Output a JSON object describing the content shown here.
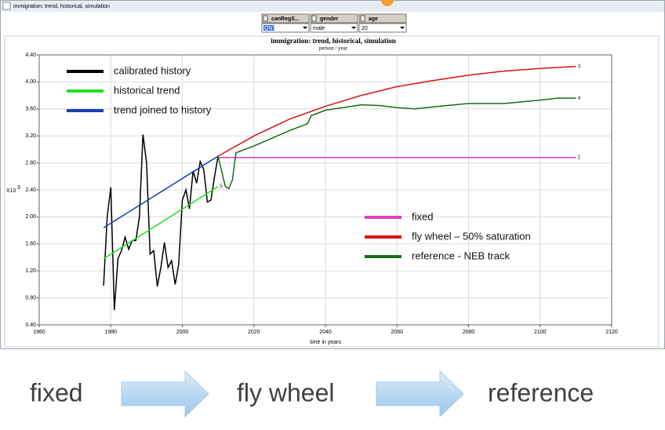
{
  "window": {
    "title": "immigration: trend, historical, simulation",
    "filters": [
      {
        "label": "canRegS...",
        "value": "ONT"
      },
      {
        "label": "gender",
        "value": "male"
      },
      {
        "label": "age",
        "value": "20"
      }
    ]
  },
  "chart_data": {
    "type": "line",
    "title": "immigration: trend, historical, simulation",
    "subtitle": "person / year",
    "xlabel": "time in years",
    "ylabel": "X10",
    "ylabel_exponent": "3",
    "xlim": [
      1960,
      2120
    ],
    "xticks": [
      1960,
      1980,
      2000,
      2020,
      2040,
      2060,
      2080,
      2100,
      2120
    ],
    "ylim": [
      0.4,
      4.4
    ],
    "yticks": [
      {
        "value": 0.4,
        "label": "0.40"
      },
      {
        "value": 0.8,
        "label": "0.80"
      },
      {
        "value": 1.2,
        "label": "1.20"
      },
      {
        "value": 1.6,
        "label": "1.60"
      },
      {
        "value": 2.0,
        "label": "2.00"
      },
      {
        "value": 2.4,
        "label": "2.40"
      },
      {
        "value": 2.8,
        "label": "2.80"
      },
      {
        "value": 3.2,
        "label": "3.20"
      },
      {
        "value": 3.6,
        "label": "3.60"
      },
      {
        "value": 4.0,
        "label": "4.00"
      },
      {
        "value": 4.4,
        "label": "4.40"
      }
    ],
    "grid": true,
    "series": [
      {
        "name": "calibrated history",
        "color": "#000000",
        "legend": "upper left",
        "x": [
          1978,
          1979,
          1980,
          1981,
          1982,
          1983,
          1984,
          1985,
          1986,
          1987,
          1988,
          1989,
          1990,
          1991,
          1992,
          1993,
          1994,
          1995,
          1996,
          1997,
          1998,
          1999,
          2000,
          2001,
          2002,
          2003,
          2004,
          2005,
          2006,
          2007,
          2008,
          2009,
          2010
        ],
        "values": [
          0.98,
          2.0,
          2.44,
          0.62,
          1.38,
          1.5,
          1.7,
          1.52,
          1.65,
          1.65,
          2.0,
          3.22,
          2.8,
          1.45,
          1.5,
          0.97,
          1.25,
          1.62,
          1.25,
          1.35,
          1.0,
          1.3,
          2.25,
          2.4,
          2.12,
          2.68,
          2.5,
          2.82,
          2.7,
          2.22,
          2.25,
          2.6,
          2.9
        ]
      },
      {
        "name": "historical trend",
        "color": "#22dd22",
        "legend": "upper left",
        "marker": "5",
        "x": [
          1978,
          2010
        ],
        "values": [
          1.38,
          2.45
        ]
      },
      {
        "name": "trend joined to history",
        "color": "#1a3fb0",
        "legend": "upper left",
        "x": [
          1978,
          2010
        ],
        "values": [
          1.84,
          2.9
        ]
      },
      {
        "name": "fixed",
        "color": "#e040c0",
        "legend": "lower right",
        "marker": "2",
        "x": [
          2010,
          2110
        ],
        "values": [
          2.88,
          2.88
        ]
      },
      {
        "name": "fly wheel – 50% saturation",
        "color": "#dd1111",
        "legend": "lower right",
        "marker": "3",
        "x": [
          2010,
          2020,
          2030,
          2040,
          2050,
          2060,
          2070,
          2080,
          2090,
          2100,
          2110
        ],
        "values": [
          2.9,
          3.2,
          3.45,
          3.64,
          3.8,
          3.93,
          4.02,
          4.1,
          4.16,
          4.2,
          4.23
        ]
      },
      {
        "name": "reference - NEB track",
        "color": "#1a6b1a",
        "legend": "lower right",
        "marker": "4",
        "x": [
          2010,
          2012,
          2013,
          2014,
          2015,
          2020,
          2030,
          2035,
          2036,
          2040,
          2050,
          2055,
          2060,
          2065,
          2070,
          2080,
          2090,
          2100,
          2105,
          2110
        ],
        "values": [
          2.9,
          2.45,
          2.42,
          2.55,
          2.95,
          3.05,
          3.28,
          3.38,
          3.5,
          3.58,
          3.66,
          3.65,
          3.62,
          3.6,
          3.63,
          3.68,
          3.68,
          3.73,
          3.76,
          3.76
        ]
      }
    ]
  },
  "flow": [
    "fixed",
    "fly wheel",
    "reference"
  ]
}
